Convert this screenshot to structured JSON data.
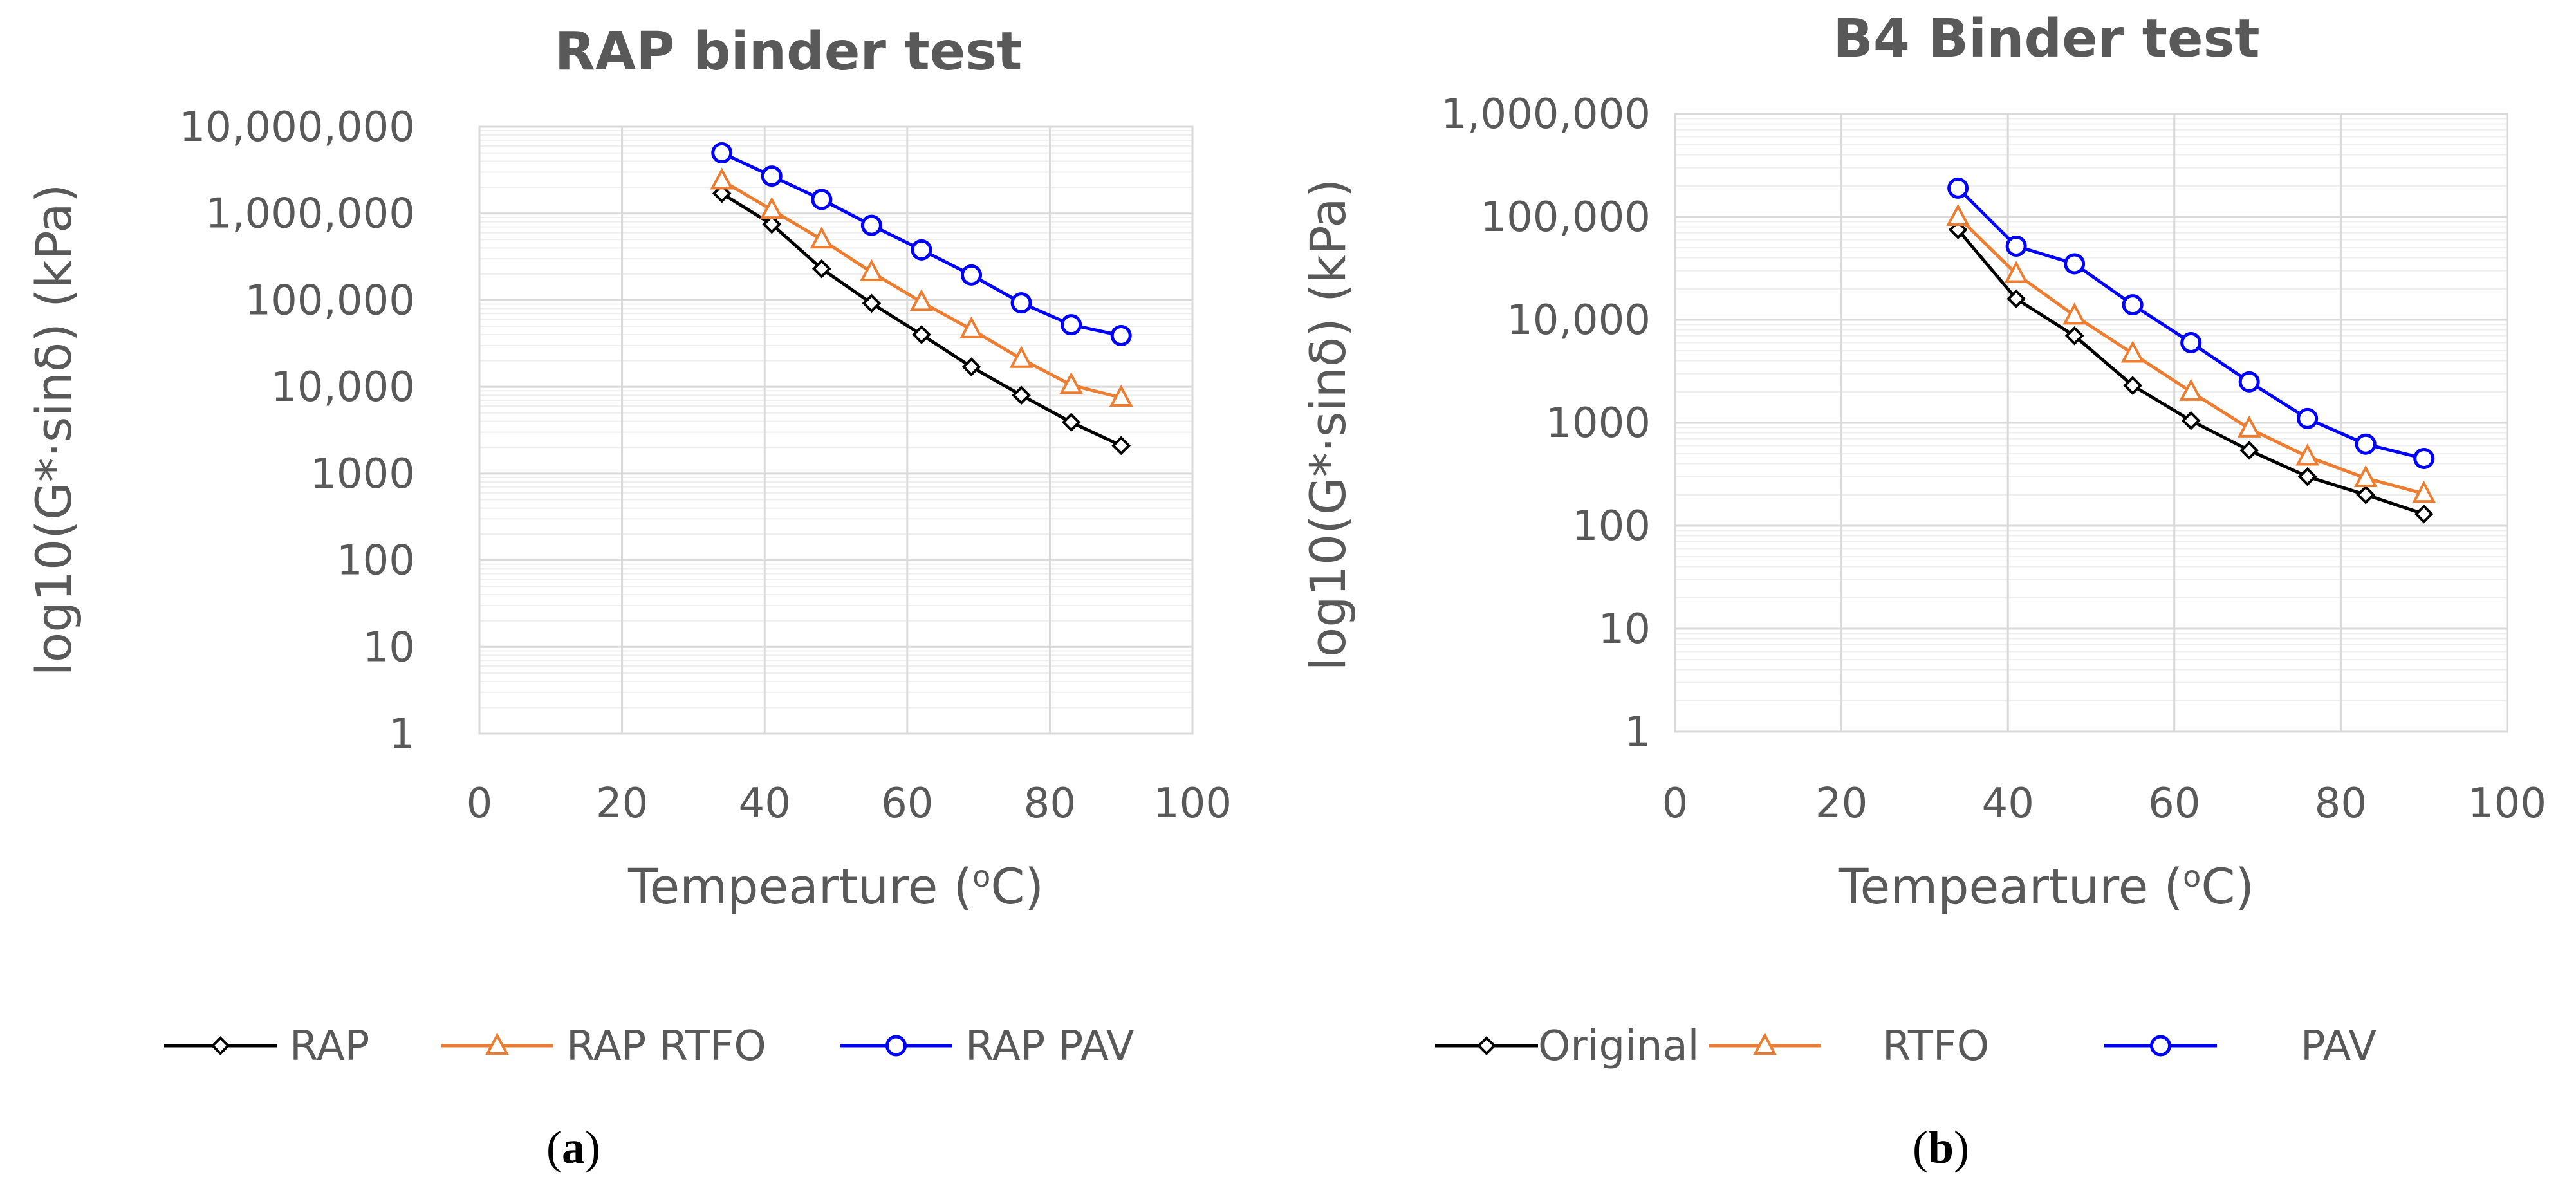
{
  "chart_data": [
    {
      "type": "line",
      "panel": "a",
      "title": "RAP binder test",
      "xlabel": "Tempearture (",
      "xlabel_sup": "o",
      "xlabel_end": "C)",
      "ylabel": "log10(G*·sinδ) (kPa)",
      "yscale": "log",
      "xlim": [
        0,
        100
      ],
      "ylim": [
        1,
        10000000
      ],
      "xticks": [
        0,
        20,
        40,
        60,
        80,
        100
      ],
      "yticks": [
        1,
        10,
        100,
        1000,
        10000,
        100000,
        1000000,
        10000000
      ],
      "ytick_labels": [
        "1",
        "10",
        "100",
        "1000",
        "10,000",
        "100,000",
        "1,000,000",
        "10,000,000"
      ],
      "grid": true,
      "legend_position": "bottom",
      "caption_letter": "a",
      "series": [
        {
          "name": "RAP",
          "color": "#000000",
          "marker": "diamond",
          "x": [
            34,
            41,
            48,
            55,
            62,
            69,
            76,
            83,
            90
          ],
          "values": [
            1700000,
            750000,
            230000,
            92000,
            40000,
            17000,
            8000,
            3900,
            2100
          ]
        },
        {
          "name": "RAP RTFO",
          "color": "#ED7D31",
          "marker": "triangle",
          "x": [
            34,
            41,
            48,
            55,
            62,
            69,
            76,
            83,
            90
          ],
          "values": [
            2400000,
            1100000,
            500000,
            210000,
            95000,
            46000,
            21000,
            10500,
            7500
          ]
        },
        {
          "name": "RAP PAV",
          "color": "#0000FF",
          "marker": "circle",
          "x": [
            34,
            41,
            48,
            55,
            62,
            69,
            76,
            83,
            90
          ],
          "values": [
            5000000,
            2700000,
            1450000,
            730000,
            380000,
            195000,
            93000,
            52000,
            39000
          ]
        }
      ]
    },
    {
      "type": "line",
      "panel": "b",
      "title": "B4 Binder test",
      "xlabel": "Tempearture (",
      "xlabel_sup": "o",
      "xlabel_end": "C)",
      "ylabel": "log10(G*·sinδ) (kPa)",
      "yscale": "log",
      "xlim": [
        0,
        100
      ],
      "ylim": [
        1,
        1000000
      ],
      "xticks": [
        0,
        20,
        40,
        60,
        80,
        100
      ],
      "yticks": [
        1,
        10,
        100,
        1000,
        10000,
        100000,
        1000000
      ],
      "ytick_labels": [
        "1",
        "10",
        "100",
        "1000",
        "10,000",
        "100,000",
        "1,000,000"
      ],
      "grid": true,
      "legend_position": "bottom",
      "caption_letter": "b",
      "series": [
        {
          "name": "Original",
          "color": "#000000",
          "marker": "diamond",
          "x": [
            34,
            41,
            48,
            55,
            62,
            69,
            76,
            83,
            90
          ],
          "values": [
            75000,
            16000,
            7000,
            2300,
            1050,
            540,
            300,
            200,
            130
          ]
        },
        {
          "name": "RTFO",
          "color": "#ED7D31",
          "marker": "triangle",
          "x": [
            34,
            41,
            48,
            55,
            62,
            69,
            76,
            83,
            90
          ],
          "values": [
            100000,
            28000,
            11000,
            4700,
            2000,
            880,
            470,
            290,
            205
          ]
        },
        {
          "name": "PAV",
          "color": "#0000FF",
          "marker": "circle",
          "x": [
            34,
            41,
            48,
            55,
            62,
            69,
            76,
            83,
            90
          ],
          "values": [
            190000,
            52000,
            35000,
            14000,
            6000,
            2500,
            1100,
            620,
            450
          ]
        }
      ]
    }
  ]
}
